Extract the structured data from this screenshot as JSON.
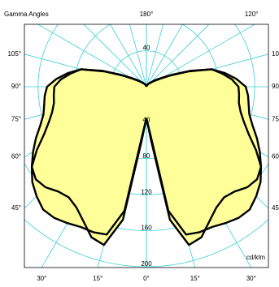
{
  "chart_data": {
    "type": "polar",
    "title": "Gamma Angles",
    "unit": "cd/klm",
    "x": [
      0,
      5,
      10,
      15,
      20,
      25,
      30,
      35,
      40,
      45,
      50,
      55,
      60,
      65,
      70,
      75,
      80,
      85,
      90,
      95,
      100,
      105,
      110,
      115,
      120,
      125,
      130,
      135,
      140,
      145,
      150,
      155,
      160,
      165,
      170,
      175,
      180
    ],
    "series": [
      {
        "color": "#000000",
        "values": [
          35,
          60,
          150,
          182,
          178,
          165,
          155,
          150,
          152,
          158,
          160,
          155,
          140,
          125,
          115,
          108,
          104,
          103,
          102,
          95,
          85,
          75,
          52,
          32,
          20,
          14,
          10,
          7,
          5,
          4,
          3,
          2,
          2,
          1,
          1,
          0,
          0
        ]
      },
      {
        "color": "#000000",
        "values": [
          35,
          55,
          140,
          170,
          172,
          172,
          175,
          178,
          178,
          172,
          165,
          155,
          145,
          135,
          125,
          118,
          115,
          113,
          110,
          100,
          88,
          75,
          50,
          30,
          18,
          12,
          9,
          6,
          5,
          4,
          3,
          2,
          2,
          1,
          1,
          0,
          0
        ]
      }
    ],
    "fill": "#ffff99",
    "rlim": [
      0,
      200
    ],
    "rticks": [
      40,
      80,
      120,
      160,
      200
    ],
    "angle_ticks": [
      {
        "value": 0,
        "label": "0°"
      },
      {
        "value": 15,
        "label": "15°"
      },
      {
        "value": 30,
        "label": "30°"
      },
      {
        "value": 45,
        "label": "45°"
      },
      {
        "value": 60,
        "label": "60°"
      },
      {
        "value": 75,
        "label": "75°"
      },
      {
        "value": 90,
        "label": "90°"
      },
      {
        "value": 105,
        "label": "105°"
      },
      {
        "value": 120,
        "label": "120°"
      },
      {
        "value": 180,
        "label": "180°"
      }
    ],
    "grid": true
  }
}
